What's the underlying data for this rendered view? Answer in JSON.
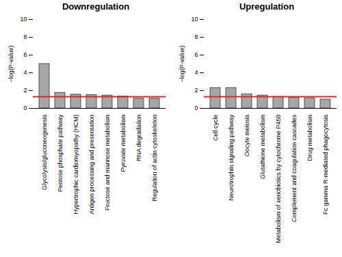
{
  "chart_data": [
    {
      "type": "bar",
      "title": "Downregulation",
      "categories": [
        "Glycolysis/gluconeogenesis",
        "Pentose phosphate pathway",
        "Hypertrophic cardiomyopathy (HCM)",
        "Antigen processing and presentation",
        "Fructose and mannose metabolism",
        "Pyruvate metabolism",
        "RNA degradation",
        "Regulation of actin cytoskeleton"
      ],
      "values": [
        5.0,
        1.75,
        1.55,
        1.5,
        1.45,
        1.35,
        1.1,
        1.1
      ],
      "color": "#a6a6a6",
      "ylabel": "−log(P-value)",
      "ylim": [
        0,
        10
      ],
      "yticks": [
        0,
        2,
        4,
        6,
        8,
        10
      ],
      "threshold": {
        "value": 1.3,
        "color": "#e0262a"
      }
    },
    {
      "type": "bar",
      "title": "Upregulation",
      "categories": [
        "Cell cycle",
        "Neurotrophin signaling pathway",
        "Oocyte meiosis",
        "Glutathione metabolism",
        "Metabolism of xenobiotics by cytochrome P450",
        "Complement and coagulation cascades",
        "Drug metabolism",
        "Fc gamma R-mediated phagocytosis"
      ],
      "values": [
        2.3,
        2.3,
        1.6,
        1.45,
        1.3,
        1.2,
        1.15,
        1.0
      ],
      "color": "#a6a6a6",
      "ylabel": "−log(P-value)",
      "ylim": [
        0,
        10
      ],
      "yticks": [
        0,
        2,
        4,
        6,
        8,
        10
      ],
      "threshold": {
        "value": 1.3,
        "color": "#e0262a"
      }
    }
  ]
}
